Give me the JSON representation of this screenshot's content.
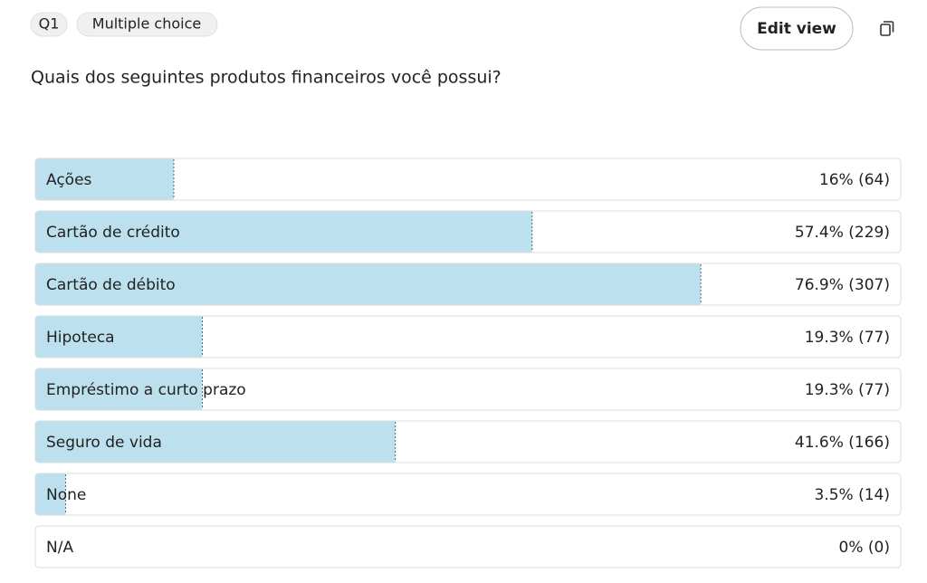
{
  "badges": [
    "Q1",
    "Multiple choice"
  ],
  "button": "Edit view",
  "chart_data": {
    "type": "bar",
    "orientation": "horizontal",
    "title": "Quais dos seguintes produtos financeiros você possui?",
    "categories": [
      "Ações",
      "Cartão de crédito",
      "Cartão de débito",
      "Hipoteca",
      "Empréstimo a curto prazo",
      "Seguro de vida",
      "None",
      "N/A"
    ],
    "values": [
      16,
      57.4,
      76.9,
      19.3,
      19.3,
      41.6,
      3.5,
      0
    ],
    "value_labels": [
      "16% (64)",
      "57.4% (229)",
      "76.9% (307)",
      "19.3% (77)",
      "19.3% (77)",
      "41.6% (166)",
      "3.5% (14)",
      "0% (0)"
    ],
    "xlim": [
      0,
      100
    ],
    "color": "#bde0ee"
  }
}
